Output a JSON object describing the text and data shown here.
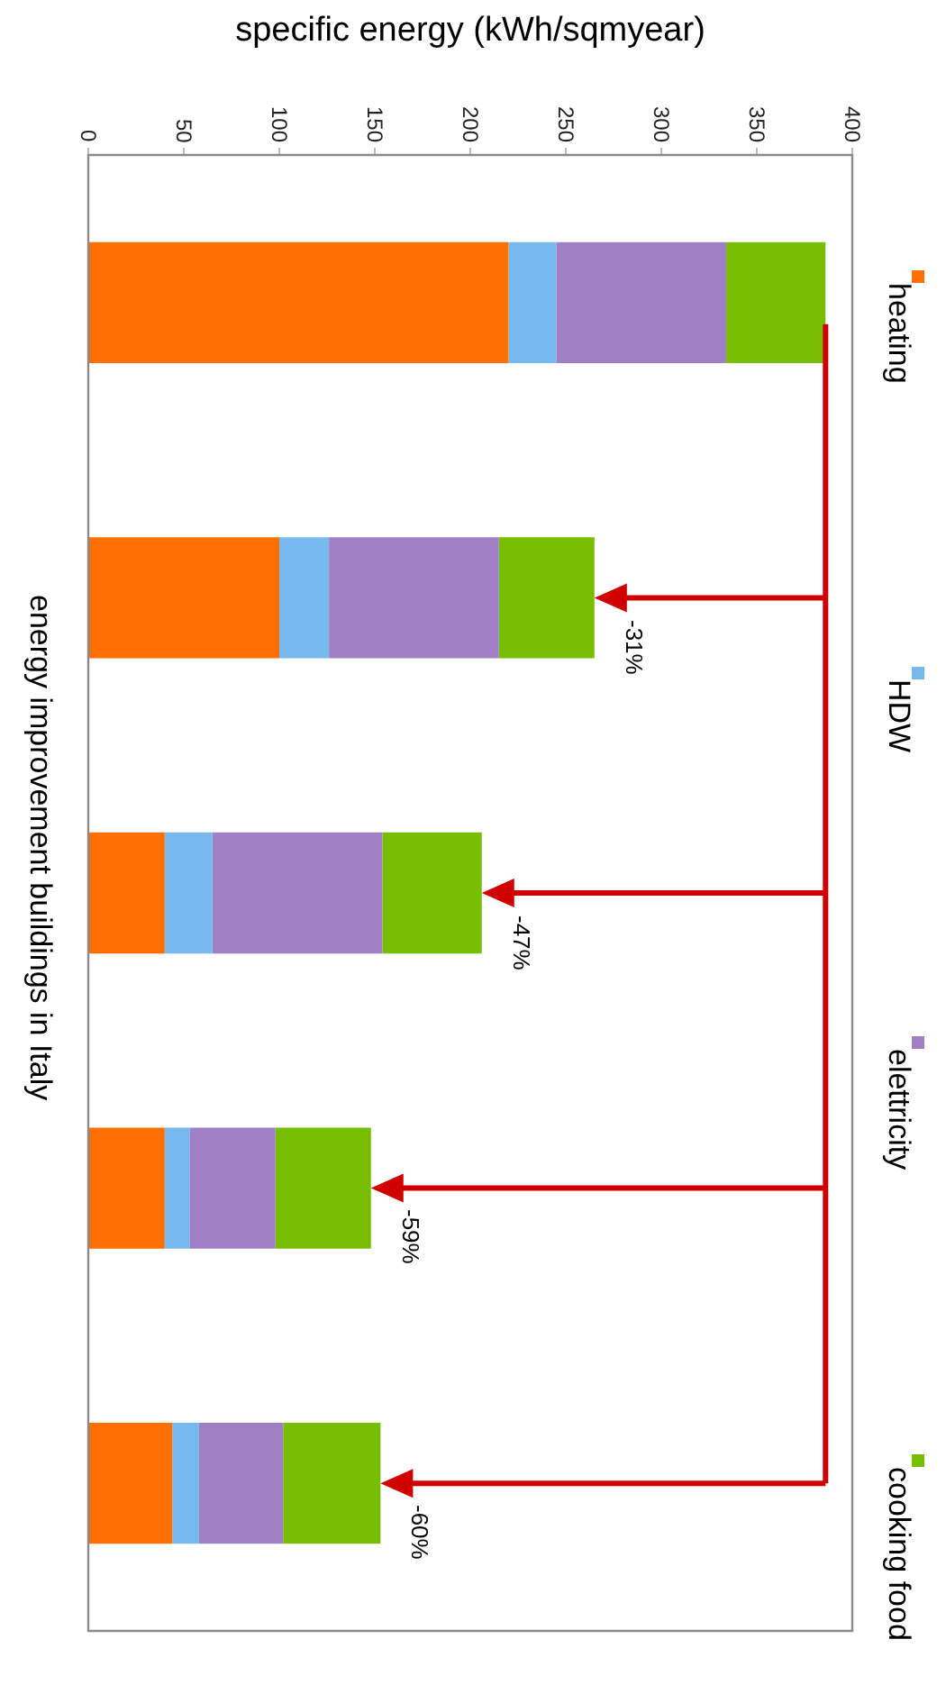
{
  "chart_data": {
    "type": "bar",
    "stacked": true,
    "orientation": "horizontal",
    "title": "energy improvement buildings in Italy",
    "xlabel": "specific energy (kWh/sqmyear)",
    "categories": [
      null,
      null,
      null,
      null,
      null
    ],
    "series": [
      {
        "name": "heating",
        "color": "#ff7000",
        "values": [
          220,
          100,
          40,
          40,
          44
        ]
      },
      {
        "name": "HDW",
        "color": "#77b9ef",
        "values": [
          25,
          26,
          25,
          13,
          14
        ]
      },
      {
        "name": "elettricity",
        "color": "#a080c4",
        "values": [
          89,
          89,
          89,
          45,
          44
        ]
      },
      {
        "name": "cooking food",
        "color": "#77bd00",
        "values": [
          52,
          50,
          52,
          50,
          51
        ]
      }
    ],
    "xlim": [
      0,
      400
    ],
    "xticks": [
      0,
      50,
      100,
      150,
      200,
      250,
      300,
      350,
      400
    ],
    "grid": false,
    "legend": "right",
    "ref_lines": [
      {
        "axis": "x",
        "value": 386,
        "color": "#d00000"
      }
    ],
    "annotations": [
      "-31%",
      "-47%",
      "-59%",
      "-60%"
    ]
  }
}
